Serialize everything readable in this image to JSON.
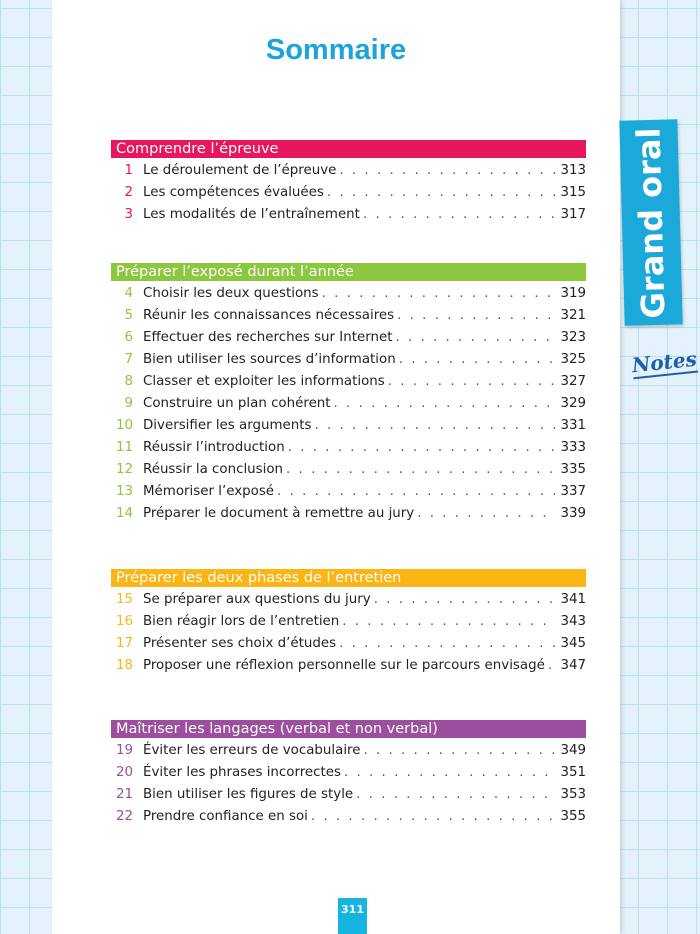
{
  "title": "Sommaire",
  "side_tab": "Grand oral",
  "notes_label": "Notes",
  "page_number": "311",
  "colors": {
    "title": "#1ba3dc",
    "tab": "#1aa9d8"
  },
  "sections": [
    {
      "title": "Comprendre l’épreuve",
      "color": "#e8175d",
      "items": [
        {
          "n": "1",
          "label": "Le déroulement de l’épreuve",
          "page": "313"
        },
        {
          "n": "2",
          "label": "Les compétences évaluées",
          "page": "315"
        },
        {
          "n": "3",
          "label": "Les modalités de l’entraînement",
          "page": "317"
        }
      ]
    },
    {
      "title": "Préparer l’exposé durant l’année",
      "color": "#8dc63f",
      "items": [
        {
          "n": "4",
          "label": "Choisir les deux questions",
          "page": "319"
        },
        {
          "n": "5",
          "label": "Réunir les connaissances nécessaires",
          "page": "321"
        },
        {
          "n": "6",
          "label": "Effectuer des recherches sur Internet",
          "page": "323"
        },
        {
          "n": "7",
          "label": "Bien utiliser les sources d’information",
          "page": "325"
        },
        {
          "n": "8",
          "label": "Classer et exploiter les informations",
          "page": "327"
        },
        {
          "n": "9",
          "label": "Construire un plan cohérent",
          "page": "329"
        },
        {
          "n": "10",
          "label": "Diversifier les arguments",
          "page": "331"
        },
        {
          "n": "11",
          "label": "Réussir l’introduction",
          "page": "333"
        },
        {
          "n": "12",
          "label": "Réussir la conclusion",
          "page": "335"
        },
        {
          "n": "13",
          "label": "Mémoriser l’exposé",
          "page": "337"
        },
        {
          "n": "14",
          "label": "Préparer le document à remettre au jury",
          "page": "339"
        }
      ]
    },
    {
      "title": "Préparer les deux phases de l’entretien",
      "color": "#fbb515",
      "items": [
        {
          "n": "15",
          "label": "Se préparer aux questions du jury",
          "page": "341"
        },
        {
          "n": "16",
          "label": "Bien réagir lors de l’entretien",
          "page": "343"
        },
        {
          "n": "17",
          "label": "Présenter ses choix d’études",
          "page": "345"
        },
        {
          "n": "18",
          "label": "Proposer une réflexion personnelle sur le parcours envisagé",
          "page": "347"
        }
      ]
    },
    {
      "title": "Maîtriser les langages (verbal et non verbal)",
      "color": "#9b4f9e",
      "items": [
        {
          "n": "19",
          "label": "Éviter les erreurs de vocabulaire",
          "page": "349"
        },
        {
          "n": "20",
          "label": "Éviter les phrases incorrectes",
          "page": "351"
        },
        {
          "n": "21",
          "label": "Bien utiliser les figures de style",
          "page": "353"
        },
        {
          "n": "22",
          "label": "Prendre confiance en soi",
          "page": "355"
        }
      ]
    }
  ]
}
